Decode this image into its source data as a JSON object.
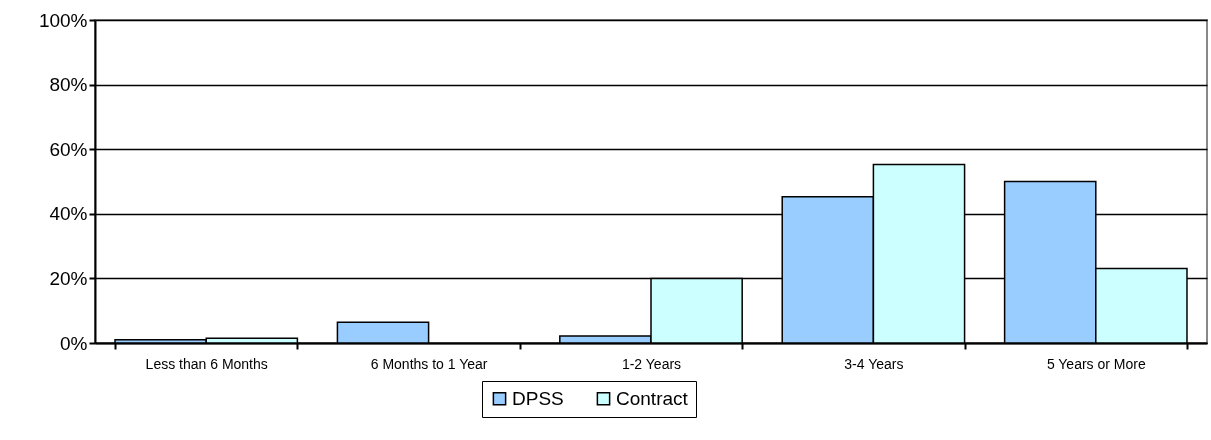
{
  "chart_data": {
    "type": "bar",
    "categories": [
      "Less than 6 Months",
      "6 Months to 1 Year",
      "1-2 Years",
      "3-4 Years",
      "5 Years or More"
    ],
    "series": [
      {
        "name": "DPSS",
        "color": "#99ccff",
        "values": [
          1.0,
          6.4,
          2.2,
          45.3,
          50.0
        ]
      },
      {
        "name": "Contract",
        "color": "#ccffff",
        "values": [
          1.5,
          null,
          20.0,
          55.3,
          23.1
        ]
      }
    ],
    "ylim": [
      0,
      100
    ],
    "yticks": [
      {
        "value": 0,
        "label": "0%"
      },
      {
        "value": 20,
        "label": "20%"
      },
      {
        "value": 40,
        "label": "40%"
      },
      {
        "value": 60,
        "label": "60%"
      },
      {
        "value": 80,
        "label": "80%"
      },
      {
        "value": 100,
        "label": "100%"
      }
    ],
    "grid": "y",
    "legend": "bottom"
  }
}
